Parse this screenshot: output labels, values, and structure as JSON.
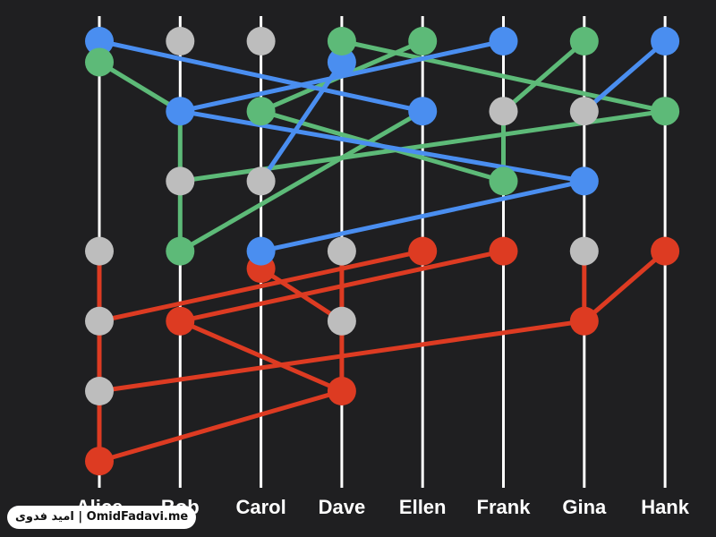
{
  "colors": {
    "background": "#1f1f21",
    "lane": "#ffffff",
    "blue": "#4a8ef0",
    "green": "#5dba78",
    "red": "#dd3b22",
    "gray": "#bdbdbd"
  },
  "lanes": [
    "Alice",
    "Bob",
    "Carol",
    "Dave",
    "Ellen",
    "Frank",
    "Gina",
    "Hank"
  ],
  "rounds": 7,
  "nodes": [
    {
      "lane": "Alice",
      "round": 1,
      "color": "blue"
    },
    {
      "lane": "Alice",
      "round": 1.3,
      "color": "green"
    },
    {
      "lane": "Alice",
      "round": 4,
      "color": "gray"
    },
    {
      "lane": "Alice",
      "round": 5,
      "color": "gray"
    },
    {
      "lane": "Alice",
      "round": 6,
      "color": "gray"
    },
    {
      "lane": "Alice",
      "round": 7,
      "color": "red"
    },
    {
      "lane": "Bob",
      "round": 1,
      "color": "gray"
    },
    {
      "lane": "Bob",
      "round": 2,
      "color": "blue"
    },
    {
      "lane": "Bob",
      "round": 3,
      "color": "gray"
    },
    {
      "lane": "Bob",
      "round": 4,
      "color": "green"
    },
    {
      "lane": "Bob",
      "round": 5,
      "color": "red"
    },
    {
      "lane": "Carol",
      "round": 1,
      "color": "gray"
    },
    {
      "lane": "Carol",
      "round": 2,
      "color": "green"
    },
    {
      "lane": "Carol",
      "round": 3,
      "color": "gray"
    },
    {
      "lane": "Carol",
      "round": 4.25,
      "color": "red"
    },
    {
      "lane": "Carol",
      "round": 4,
      "color": "blue"
    },
    {
      "lane": "Dave",
      "round": 1.3,
      "color": "blue"
    },
    {
      "lane": "Dave",
      "round": 1,
      "color": "green"
    },
    {
      "lane": "Dave",
      "round": 4,
      "color": "gray"
    },
    {
      "lane": "Dave",
      "round": 5,
      "color": "gray"
    },
    {
      "lane": "Dave",
      "round": 6,
      "color": "red"
    },
    {
      "lane": "Ellen",
      "round": 1,
      "color": "green"
    },
    {
      "lane": "Ellen",
      "round": 2,
      "color": "blue"
    },
    {
      "lane": "Ellen",
      "round": 4,
      "color": "red"
    },
    {
      "lane": "Frank",
      "round": 1,
      "color": "blue"
    },
    {
      "lane": "Frank",
      "round": 2,
      "color": "gray"
    },
    {
      "lane": "Frank",
      "round": 3,
      "color": "green"
    },
    {
      "lane": "Frank",
      "round": 4,
      "color": "red"
    },
    {
      "lane": "Gina",
      "round": 1,
      "color": "green"
    },
    {
      "lane": "Gina",
      "round": 2,
      "color": "gray"
    },
    {
      "lane": "Gina",
      "round": 3,
      "color": "blue"
    },
    {
      "lane": "Gina",
      "round": 4,
      "color": "gray"
    },
    {
      "lane": "Gina",
      "round": 5,
      "color": "red"
    },
    {
      "lane": "Hank",
      "round": 1,
      "color": "blue"
    },
    {
      "lane": "Hank",
      "round": 2,
      "color": "green"
    },
    {
      "lane": "Hank",
      "round": 4,
      "color": "red"
    }
  ],
  "edges": [
    {
      "color": "blue",
      "from": [
        "Alice",
        1
      ],
      "to": [
        "Ellen",
        2
      ]
    },
    {
      "color": "blue",
      "from": [
        "Bob",
        2
      ],
      "to": [
        "Frank",
        1
      ]
    },
    {
      "color": "blue",
      "from": [
        "Bob",
        2
      ],
      "to": [
        "Gina",
        3
      ]
    },
    {
      "color": "blue",
      "from": [
        "Carol",
        3
      ],
      "to": [
        "Dave",
        1.3
      ]
    },
    {
      "color": "blue",
      "from": [
        "Carol",
        4
      ],
      "to": [
        "Gina",
        3
      ]
    },
    {
      "color": "blue",
      "from": [
        "Gina",
        2
      ],
      "to": [
        "Hank",
        1
      ]
    },
    {
      "color": "green",
      "from": [
        "Alice",
        1.3
      ],
      "to": [
        "Bob",
        2
      ]
    },
    {
      "color": "green",
      "from": [
        "Bob",
        2
      ],
      "to": [
        "Bob",
        4
      ]
    },
    {
      "color": "green",
      "from": [
        "Bob",
        3
      ],
      "to": [
        "Hank",
        2
      ]
    },
    {
      "color": "green",
      "from": [
        "Carol",
        2
      ],
      "to": [
        "Ellen",
        1
      ]
    },
    {
      "color": "green",
      "from": [
        "Dave",
        1
      ],
      "to": [
        "Hank",
        2
      ]
    },
    {
      "color": "green",
      "from": [
        "Carol",
        2
      ],
      "to": [
        "Frank",
        3
      ]
    },
    {
      "color": "green",
      "from": [
        "Bob",
        4
      ],
      "to": [
        "Ellen",
        2
      ]
    },
    {
      "color": "green",
      "from": [
        "Frank",
        2
      ],
      "to": [
        "Gina",
        1
      ]
    },
    {
      "color": "green",
      "from": [
        "Frank",
        2
      ],
      "to": [
        "Frank",
        3
      ]
    },
    {
      "color": "red",
      "from": [
        "Alice",
        4
      ],
      "to": [
        "Alice",
        7
      ]
    },
    {
      "color": "red",
      "from": [
        "Alice",
        5
      ],
      "to": [
        "Ellen",
        4
      ]
    },
    {
      "color": "red",
      "from": [
        "Bob",
        5
      ],
      "to": [
        "Frank",
        4
      ]
    },
    {
      "color": "red",
      "from": [
        "Alice",
        6
      ],
      "to": [
        "Gina",
        5
      ]
    },
    {
      "color": "red",
      "from": [
        "Alice",
        7
      ],
      "to": [
        "Dave",
        6
      ]
    },
    {
      "color": "red",
      "from": [
        "Bob",
        5
      ],
      "to": [
        "Dave",
        6
      ]
    },
    {
      "color": "red",
      "from": [
        "Carol",
        4.25
      ],
      "to": [
        "Dave",
        5
      ]
    },
    {
      "color": "red",
      "from": [
        "Dave",
        4
      ],
      "to": [
        "Dave",
        6
      ]
    },
    {
      "color": "red",
      "from": [
        "Gina",
        4
      ],
      "to": [
        "Gina",
        5
      ]
    },
    {
      "color": "red",
      "from": [
        "Gina",
        5
      ],
      "to": [
        "Hank",
        4
      ]
    }
  ],
  "watermark": "امید فدوی | OmidFadavi.me"
}
